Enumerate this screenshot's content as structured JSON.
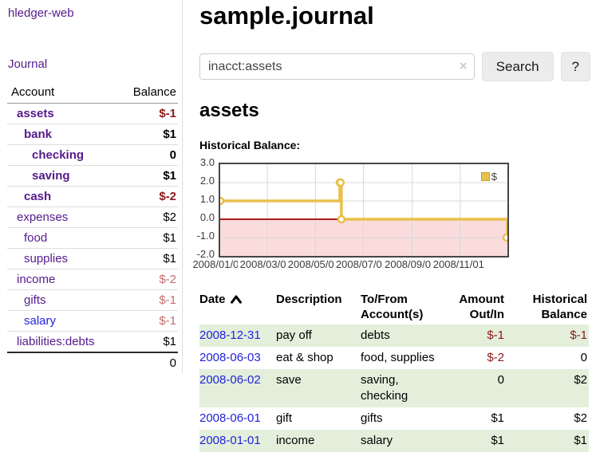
{
  "app": {
    "title": "hledger-web"
  },
  "colors": {
    "link_purple": "#551a8b",
    "link_blue": "#2222dd",
    "negative_dark": "#8b1a1a",
    "negative_soft": "#c46e6e",
    "row_stripe_green": "#e3efdb",
    "chart_gold": "#e8c04a",
    "chart_negative_fill": "#fbdcdc",
    "chart_zero_line": "#a81d1d",
    "chart_grid": "#d8d8d8"
  },
  "sidebar": {
    "journal_link": "Journal",
    "accounts": {
      "headers": {
        "account": "Account",
        "balance": "Balance"
      },
      "rows": [
        {
          "name": "assets",
          "depth": 0,
          "balance": "$-1",
          "bold": true,
          "neg": "dark"
        },
        {
          "name": "bank",
          "depth": 1,
          "balance": "$1",
          "bold": true,
          "neg": ""
        },
        {
          "name": "checking",
          "depth": 2,
          "balance": "0",
          "bold": true,
          "neg": ""
        },
        {
          "name": "saving",
          "depth": 2,
          "balance": "$1",
          "bold": true,
          "neg": ""
        },
        {
          "name": "cash",
          "depth": 1,
          "balance": "$-2",
          "bold": true,
          "neg": "dark"
        },
        {
          "name": "expenses",
          "depth": 0,
          "balance": "$2",
          "bold": false,
          "neg": ""
        },
        {
          "name": "food",
          "depth": 1,
          "balance": "$1",
          "bold": false,
          "neg": ""
        },
        {
          "name": "supplies",
          "depth": 1,
          "balance": "$1",
          "bold": false,
          "neg": ""
        },
        {
          "name": "income",
          "depth": 0,
          "balance": "$-2",
          "bold": false,
          "neg": "soft"
        },
        {
          "name": "gifts",
          "depth": 1,
          "balance": "$-1",
          "bold": false,
          "neg": "soft"
        },
        {
          "name": "salary",
          "depth": 1,
          "balance": "$-1",
          "bold": false,
          "neg": "soft",
          "blue": true
        },
        {
          "name": "liabilities:debts",
          "depth": 0,
          "balance": "$1",
          "bold": false,
          "neg": ""
        }
      ],
      "total": "0"
    }
  },
  "header": {
    "title": "sample.journal"
  },
  "search": {
    "value": "inacct:assets",
    "clear_icon": "×",
    "search_button": "Search",
    "help_button": "?"
  },
  "account_page": {
    "title": "assets",
    "chart_label": "Historical Balance:"
  },
  "chart_data": {
    "type": "line",
    "title": "Historical Balance",
    "steps": true,
    "xlim": [
      "2008-01-01",
      "2008-12-31"
    ],
    "ylim": [
      -2.0,
      3.0
    ],
    "y_ticks": [
      {
        "v": 3.0,
        "label": "3.0"
      },
      {
        "v": 2.0,
        "label": "2.0"
      },
      {
        "v": 1.0,
        "label": "1.0"
      },
      {
        "v": 0.0,
        "label": "0.0"
      },
      {
        "v": -1.0,
        "label": "-1.0"
      },
      {
        "v": -2.0,
        "label": "-2.0"
      }
    ],
    "x_ticks": [
      {
        "d": "2008-01-01",
        "label": "2008/01/01"
      },
      {
        "d": "2008-03-01",
        "label": "2008/03/01"
      },
      {
        "d": "2008-05-01",
        "label": "2008/05/01"
      },
      {
        "d": "2008-07-01",
        "label": "2008/07/01"
      },
      {
        "d": "2008-09-01",
        "label": "2008/09/01"
      },
      {
        "d": "2008-11-01",
        "label": "2008/11/01"
      }
    ],
    "series": [
      {
        "name": "$",
        "color": "#e8c04a",
        "points": [
          {
            "d": "2008-01-01",
            "v": 1
          },
          {
            "d": "2008-06-01",
            "v": 2
          },
          {
            "d": "2008-06-02",
            "v": 2
          },
          {
            "d": "2008-06-03",
            "v": 0
          },
          {
            "d": "2008-12-31",
            "v": -1
          }
        ]
      }
    ],
    "annotations": {
      "negative_region_fill": "#fbdcdc",
      "zero_line_color": "#a81d1d"
    },
    "legend": {
      "position": "top-right",
      "label": "$",
      "swatch_color": "#e8c04a"
    },
    "grid": true
  },
  "register": {
    "columns": [
      {
        "lines": [
          "Date"
        ],
        "sort": "ascending"
      },
      {
        "lines": [
          "Description"
        ]
      },
      {
        "lines": [
          "To/From",
          "Account(s)"
        ]
      },
      {
        "lines": [
          "Amount",
          "Out/In"
        ],
        "align": "right"
      },
      {
        "lines": [
          "Historical",
          "Balance"
        ],
        "align": "right"
      }
    ],
    "rows": [
      {
        "date": "2008-12-31",
        "description": "pay off",
        "accounts": "debts",
        "amount": "$-1",
        "amount_neg": true,
        "balance": "$-1",
        "balance_neg": true
      },
      {
        "date": "2008-06-03",
        "description": "eat & shop",
        "accounts": "food, supplies",
        "amount": "$-2",
        "amount_neg": true,
        "balance": "0",
        "balance_neg": false
      },
      {
        "date": "2008-06-02",
        "description": "save",
        "accounts": "saving, checking",
        "amount": "0",
        "amount_neg": false,
        "balance": "$2",
        "balance_neg": false
      },
      {
        "date": "2008-06-01",
        "description": "gift",
        "accounts": "gifts",
        "amount": "$1",
        "amount_neg": false,
        "balance": "$2",
        "balance_neg": false
      },
      {
        "date": "2008-01-01",
        "description": "income",
        "accounts": "salary",
        "amount": "$1",
        "amount_neg": false,
        "balance": "$1",
        "balance_neg": false
      }
    ]
  }
}
